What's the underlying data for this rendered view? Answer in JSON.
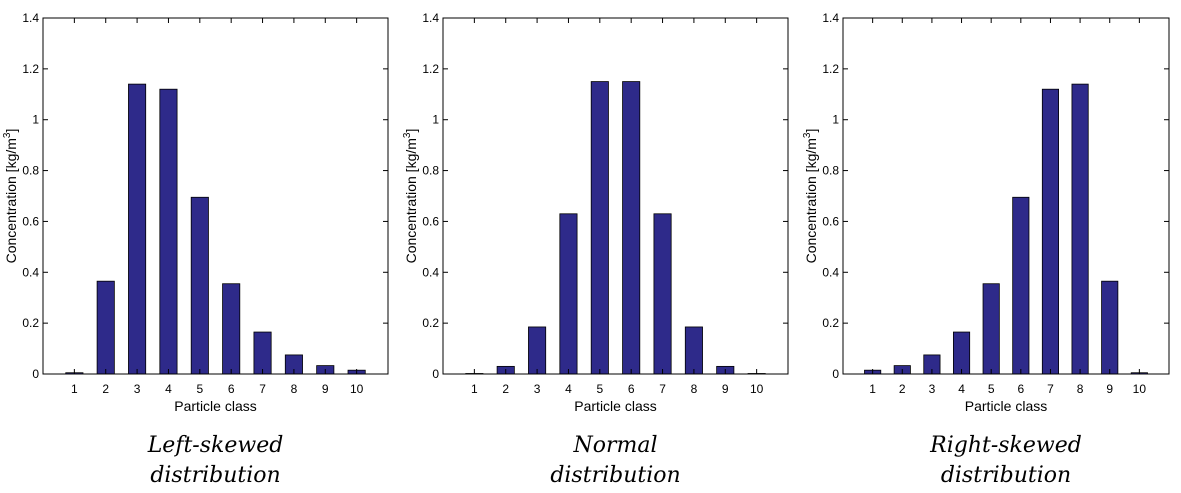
{
  "chart_data": [
    {
      "type": "bar",
      "categories": [
        "1",
        "2",
        "3",
        "4",
        "5",
        "6",
        "7",
        "8",
        "9",
        "10"
      ],
      "values": [
        0.005,
        0.365,
        1.14,
        1.12,
        0.695,
        0.355,
        0.165,
        0.075,
        0.033,
        0.015
      ],
      "xlabel": "Particle class",
      "ylabel": "Concentration [kg/m",
      "ylabel_sup": "3",
      "ylabel_end": "]",
      "ylim": [
        0,
        1.4
      ],
      "yticks": [
        "0",
        "0.2",
        "0.4",
        "0.6",
        "0.8",
        "1",
        "1.2",
        "1.4"
      ],
      "caption_line1": "Left-skewed",
      "caption_line2": "distribution",
      "bar_color": "#2e2a8a",
      "grid": false
    },
    {
      "type": "bar",
      "categories": [
        "1",
        "2",
        "3",
        "4",
        "5",
        "6",
        "7",
        "8",
        "9",
        "10"
      ],
      "values": [
        0.002,
        0.03,
        0.185,
        0.63,
        1.15,
        1.15,
        0.63,
        0.185,
        0.03,
        0.002
      ],
      "xlabel": "Particle class",
      "ylabel": "Concentration [kg/m",
      "ylabel_sup": "3",
      "ylabel_end": "]",
      "ylim": [
        0,
        1.4
      ],
      "yticks": [
        "0",
        "0.2",
        "0.4",
        "0.6",
        "0.8",
        "1",
        "1.2",
        "1.4"
      ],
      "caption_line1": "Normal",
      "caption_line2": "distribution",
      "bar_color": "#2e2a8a",
      "grid": false
    },
    {
      "type": "bar",
      "categories": [
        "1",
        "2",
        "3",
        "4",
        "5",
        "6",
        "7",
        "8",
        "9",
        "10"
      ],
      "values": [
        0.015,
        0.033,
        0.075,
        0.165,
        0.355,
        0.695,
        1.12,
        1.14,
        0.365,
        0.005
      ],
      "xlabel": "Particle class",
      "ylabel": "Concentration [kg/m",
      "ylabel_sup": "3",
      "ylabel_end": "]",
      "ylim": [
        0,
        1.4
      ],
      "yticks": [
        "0",
        "0.2",
        "0.4",
        "0.6",
        "0.8",
        "1",
        "1.2",
        "1.4"
      ],
      "caption_line1": "Right-skewed",
      "caption_line2": "distribution",
      "bar_color": "#2e2a8a",
      "grid": false
    }
  ]
}
